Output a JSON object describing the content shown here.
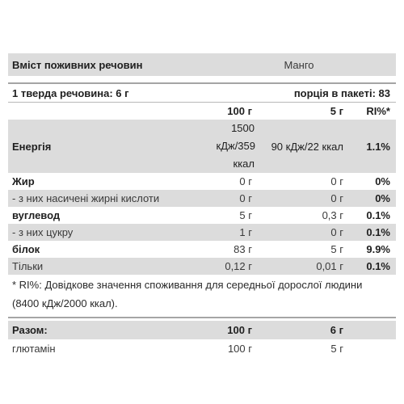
{
  "header": {
    "title": "Вміст поживних речовин",
    "flavor": "Манго"
  },
  "serving": {
    "solid_label": "1 тверда речовина: 6 г",
    "portions_label": "порція в пакеті: 83"
  },
  "columns": {
    "per100": "100 г",
    "per5": "5 г",
    "ri": "RI%*"
  },
  "rows": {
    "energy": {
      "name": "Енергія",
      "per100_lines": [
        "1500",
        "кДж/359",
        "ккал"
      ],
      "per5": "90 кДж/22 ккал",
      "ri": "1.1%"
    },
    "fat": {
      "name": "Жир",
      "per100": "0 г",
      "per5": "0 г",
      "ri": "0%"
    },
    "saturated": {
      "name": "- з них насичені жирні кислоти",
      "per100": "0 г",
      "per5": "0 г",
      "ri": "0%"
    },
    "carbs": {
      "name": "вуглевод",
      "per100": "5 г",
      "per5": "0,3 г",
      "ri": "0.1%"
    },
    "sugar": {
      "name": "- з них цукру",
      "per100": "1 г",
      "per5": "0 г",
      "ri": "0.1%"
    },
    "protein": {
      "name": "білок",
      "per100": "83 г",
      "per5": "5 г",
      "ri": "9.9%"
    },
    "salt": {
      "name": "Тільки",
      "per100": "0,12 г",
      "per5": "0,01 г",
      "ri": "0.1%"
    }
  },
  "footnote": "* RI%: Довідкове значення споживання для середньої дорослої людини (8400 кДж/2000 ккал).",
  "totals": {
    "label": "Разом:",
    "per100": "100 г",
    "per5": "6 г"
  },
  "ingredients": [
    {
      "name": "глютамін",
      "per100": "100 г",
      "per5": "5 г"
    }
  ]
}
